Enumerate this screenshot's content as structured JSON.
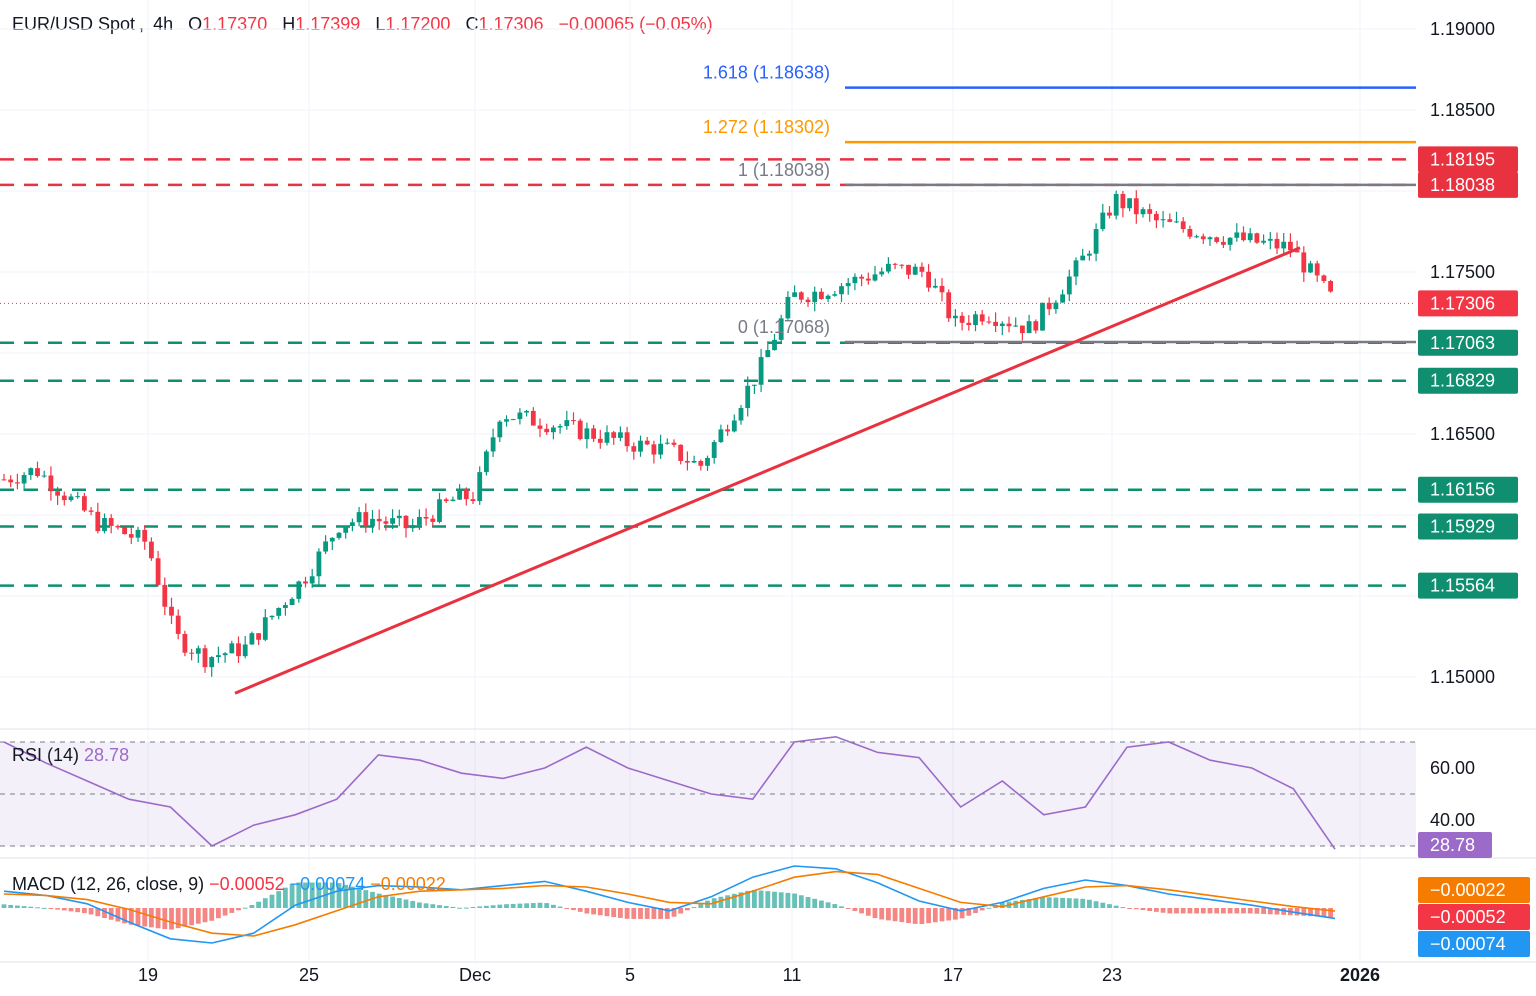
{
  "header": {
    "symbol": "EUR/USD Spot",
    "interval": "4h",
    "open_label": "O",
    "open": "1.17370",
    "high_label": "H",
    "high": "1.17399",
    "low_label": "L",
    "low": "1.17200",
    "close_label": "C",
    "close": "1.17306",
    "change": "−0.00065 (−0.05%)"
  },
  "colors": {
    "up": "#089981",
    "down": "#f23645",
    "trendline": "#e8323f",
    "resistance": "#e8323f",
    "support": "#0f8f6f",
    "fib_1618": "#2962ff",
    "fib_1272": "#ff9800",
    "fib_1": "#787b86",
    "rsi": "#9c6bc9",
    "macd_line": "#2196f3",
    "signal_line": "#f57c00"
  },
  "chart_data": [
    {
      "type": "candlestick",
      "panel": "price",
      "y_axis_ticks": [
        "1.19000",
        "1.18500",
        "1.17500",
        "1.16500",
        "1.15000"
      ],
      "x_axis_ticks": [
        "19",
        "25",
        "Dec",
        "5",
        "11",
        "17",
        "23",
        "2026"
      ],
      "last_price": 1.17306,
      "fib_levels": [
        {
          "label": "1.618 (1.18638)",
          "value": 1.18638
        },
        {
          "label": "1.272 (1.18302)",
          "value": 1.18302
        },
        {
          "label": "1 (1.18038)",
          "value": 1.18038
        },
        {
          "label": "0 (1.17068)",
          "value": 1.17068
        }
      ],
      "resistance_levels": [
        "1.18195",
        "1.18038"
      ],
      "support_levels": [
        "1.17063",
        "1.16829",
        "1.16156",
        "1.15929",
        "1.15564"
      ],
      "trendline": {
        "from": "Nov 21",
        "from_value": 1.149,
        "to": "Dec 29",
        "to_value": 1.1765
      },
      "approx_price_path": [
        {
          "x": "Nov 13",
          "close": 1.1622
        },
        {
          "x": "Nov 14",
          "close": 1.1628
        },
        {
          "x": "Nov 17",
          "close": 1.1595
        },
        {
          "x": "Nov 18",
          "close": 1.159
        },
        {
          "x": "Nov 19",
          "close": 1.1583
        },
        {
          "x": "Nov 20",
          "close": 1.1525
        },
        {
          "x": "Nov 21",
          "close": 1.1512
        },
        {
          "x": "Nov 24",
          "close": 1.1518
        },
        {
          "x": "Nov 25",
          "close": 1.1565
        },
        {
          "x": "Nov 26",
          "close": 1.1595
        },
        {
          "x": "Nov 27",
          "close": 1.1598
        },
        {
          "x": "Nov 28",
          "close": 1.1592
        },
        {
          "x": "Dec 1",
          "close": 1.161
        },
        {
          "x": "Dec 2",
          "close": 1.1612
        },
        {
          "x": "Dec 3",
          "close": 1.1663
        },
        {
          "x": "Dec 4",
          "close": 1.1655
        },
        {
          "x": "Dec 5",
          "close": 1.1644
        },
        {
          "x": "Dec 8",
          "close": 1.164
        },
        {
          "x": "Dec 9",
          "close": 1.163
        },
        {
          "x": "Dec 10",
          "close": 1.169
        },
        {
          "x": "Dec 11",
          "close": 1.1735
        },
        {
          "x": "Dec 12",
          "close": 1.1738
        },
        {
          "x": "Dec 15",
          "close": 1.1752
        },
        {
          "x": "Dec 16",
          "close": 1.175
        },
        {
          "x": "Dec 17",
          "close": 1.1718
        },
        {
          "x": "Dec 18",
          "close": 1.1725
        },
        {
          "x": "Dec 19",
          "close": 1.1715
        },
        {
          "x": "Dec 22",
          "close": 1.1755
        },
        {
          "x": "Dec 23",
          "close": 1.1795
        },
        {
          "x": "Dec 24",
          "close": 1.178
        },
        {
          "x": "Dec 26",
          "close": 1.1772
        },
        {
          "x": "Dec 29",
          "close": 1.1765
        },
        {
          "x": "Dec 30",
          "close": 1.1731
        }
      ]
    },
    {
      "type": "line",
      "panel": "rsi",
      "title": "RSI (14)",
      "value": "28.78",
      "y_axis_ticks": [
        "60.00",
        "40.00"
      ],
      "levels": [
        70,
        50,
        30
      ],
      "series": [
        {
          "values": [
            70,
            62,
            55,
            48,
            45,
            30,
            38,
            42,
            48,
            65,
            63,
            58,
            56,
            60,
            68,
            60,
            55,
            50,
            48,
            70,
            72,
            66,
            64,
            45,
            55,
            42,
            45,
            68,
            70,
            63,
            60,
            52,
            28.78
          ]
        }
      ]
    },
    {
      "type": "line",
      "panel": "macd",
      "title": "MACD (12, 26, close, 9)",
      "values_text": [
        "−0.00052",
        "−0.00074",
        "−0.00022"
      ],
      "axis_values": [
        "−0.00022",
        "−0.00052",
        "−0.00074"
      ],
      "series": [
        {
          "values": [
            0.0012,
            0.0009,
            0.0003,
            -0.001,
            -0.0022,
            -0.0025,
            -0.0018,
            0.0002,
            0.0012,
            0.0016,
            0.0015,
            0.0013,
            0.0016,
            0.0019,
            0.0012,
            0.0004,
            -0.0002,
            0.0008,
            0.0022,
            0.003,
            0.0028,
            0.0018,
            0.0005,
            -0.0002,
            0.0004,
            0.0014,
            0.002,
            0.0016,
            0.001,
            0.0006,
            0.0002,
            -0.0003,
            -0.00074
          ]
        },
        {
          "values": [
            0.001,
            0.0009,
            0.0006,
            -0.0001,
            -0.001,
            -0.0018,
            -0.002,
            -0.0012,
            -0.0002,
            0.0008,
            0.0012,
            0.0013,
            0.0014,
            0.0016,
            0.0015,
            0.001,
            0.0004,
            0.0003,
            0.0012,
            0.0022,
            0.0026,
            0.0024,
            0.0014,
            0.0004,
            0.0001,
            0.0008,
            0.0015,
            0.0016,
            0.0013,
            0.0009,
            0.0005,
            0.0001,
            -0.00022
          ]
        }
      ]
    }
  ]
}
